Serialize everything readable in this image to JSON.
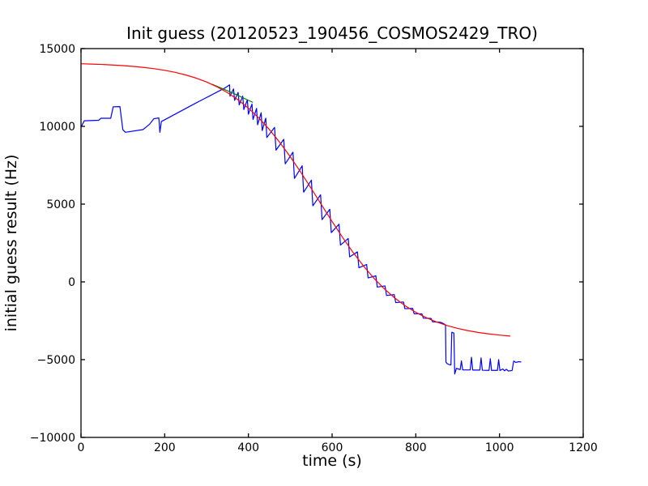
{
  "chart_data": {
    "type": "line",
    "title": "Init guess (20120523_190456_COSMOS2429_TRO)",
    "xlabel": "time (s)",
    "ylabel": "initial guess result (Hz)",
    "xlim": [
      0,
      1200
    ],
    "ylim": [
      -10000,
      15000
    ],
    "x_ticks": [
      0,
      200,
      400,
      600,
      800,
      1000,
      1200
    ],
    "x_tick_labels": [
      "0",
      "200",
      "400",
      "600",
      "800",
      "1000",
      "1200"
    ],
    "y_ticks": [
      -10000,
      -5000,
      0,
      5000,
      10000,
      15000
    ],
    "y_tick_labels": [
      "−10000",
      "−5000",
      "0",
      "5000",
      "10000",
      "15000"
    ],
    "grid": false,
    "legend": "none",
    "background_color": "#ffffff",
    "axis_color": "#000000",
    "series": [
      {
        "name": "blue-line",
        "color": "#0000ff",
        "points": [
          [
            0,
            9950
          ],
          [
            8,
            10360
          ],
          [
            42,
            10390
          ],
          [
            48,
            10520
          ],
          [
            71,
            10520
          ],
          [
            77,
            11260
          ],
          [
            93,
            11270
          ],
          [
            100,
            9790
          ],
          [
            106,
            9620
          ],
          [
            148,
            9790
          ],
          [
            164,
            10140
          ],
          [
            174,
            10490
          ],
          [
            186,
            10540
          ],
          [
            188.5,
            9620
          ],
          [
            192,
            10310
          ],
          [
            271,
            11450
          ],
          [
            344,
            12470
          ],
          [
            355,
            12670
          ],
          [
            356,
            11940
          ],
          [
            364.5,
            12410
          ],
          [
            367,
            11673
          ],
          [
            375.5,
            12182
          ],
          [
            378,
            11381
          ],
          [
            386.5,
            11944
          ],
          [
            389,
            11080
          ],
          [
            397.5,
            11706
          ],
          [
            400,
            10782
          ],
          [
            408.5,
            11436
          ],
          [
            411,
            10442
          ],
          [
            419.5,
            11156
          ],
          [
            422,
            10102
          ],
          [
            430.5,
            10876
          ],
          [
            433,
            9730
          ],
          [
            441.5,
            10530
          ],
          [
            444,
            9280
          ],
          [
            462.5,
            9934
          ],
          [
            466,
            8468
          ],
          [
            484.5,
            9166
          ],
          [
            488,
            7590
          ],
          [
            506.5,
            8340
          ],
          [
            510,
            6653
          ],
          [
            528.5,
            7464
          ],
          [
            532,
            5767
          ],
          [
            550.5,
            6541
          ],
          [
            554,
            4891
          ],
          [
            572.5,
            5600
          ],
          [
            576,
            4001
          ],
          [
            594.5,
            4666
          ],
          [
            598,
            3168
          ],
          [
            616.5,
            3709
          ],
          [
            620,
            2365
          ],
          [
            638.5,
            2791
          ],
          [
            642,
            1606
          ],
          [
            660.5,
            1930
          ],
          [
            664,
            907
          ],
          [
            682.5,
            1114
          ],
          [
            686,
            255
          ],
          [
            704.5,
            390
          ],
          [
            708,
            -336
          ],
          [
            726.5,
            -258
          ],
          [
            730,
            -871
          ],
          [
            748.5,
            -817
          ],
          [
            752,
            -1332
          ],
          [
            770.5,
            -1292
          ],
          [
            774,
            -1722
          ],
          [
            792.5,
            -1703
          ],
          [
            796,
            -2051
          ],
          [
            814.5,
            -2057
          ],
          [
            818,
            -2335
          ],
          [
            836.5,
            -2350
          ],
          [
            840,
            -2569
          ],
          [
            858.5,
            -2598
          ],
          [
            862,
            -2630
          ],
          [
            866,
            -2680
          ],
          [
            871,
            -2760
          ],
          [
            872,
            -5150
          ],
          [
            875,
            -5260
          ],
          [
            882,
            -5340
          ],
          [
            884,
            -5340
          ],
          [
            886,
            -3240
          ],
          [
            891,
            -3290
          ],
          [
            893,
            -5920
          ],
          [
            897,
            -5560
          ],
          [
            906,
            -5640
          ],
          [
            909,
            -5080
          ],
          [
            912,
            -5660
          ],
          [
            930,
            -5660
          ],
          [
            933,
            -4850
          ],
          [
            936,
            -5670
          ],
          [
            953,
            -5670
          ],
          [
            956,
            -4890
          ],
          [
            959,
            -5680
          ],
          [
            975,
            -5690
          ],
          [
            978,
            -4940
          ],
          [
            981,
            -5690
          ],
          [
            995,
            -5690
          ],
          [
            998,
            -5000
          ],
          [
            1001,
            -5700
          ],
          [
            1008,
            -5600
          ],
          [
            1012,
            -5720
          ],
          [
            1016,
            -5620
          ],
          [
            1021,
            -5730
          ],
          [
            1030,
            -5700
          ],
          [
            1034,
            -5090
          ],
          [
            1039,
            -5180
          ],
          [
            1046,
            -5130
          ],
          [
            1051,
            -5150
          ]
        ]
      },
      {
        "name": "green-line",
        "color": "#008000",
        "points": [
          [
            314,
            12700
          ],
          [
            362,
            12150
          ],
          [
            410,
            11550
          ]
        ]
      },
      {
        "name": "red-line",
        "color": "#ff0000",
        "points": [
          [
            0,
            14026
          ],
          [
            25,
            14005
          ],
          [
            50,
            13980
          ],
          [
            75,
            13947
          ],
          [
            100,
            13906
          ],
          [
            125,
            13855
          ],
          [
            150,
            13789
          ],
          [
            175,
            13706
          ],
          [
            200,
            13602
          ],
          [
            225,
            13472
          ],
          [
            250,
            13308
          ],
          [
            275,
            13105
          ],
          [
            300,
            12855
          ],
          [
            325,
            12544
          ],
          [
            350,
            12169
          ],
          [
            375,
            11712
          ],
          [
            400,
            11172
          ],
          [
            425,
            10536
          ],
          [
            450,
            9800
          ],
          [
            475,
            8969
          ],
          [
            500,
            8047
          ],
          [
            525,
            7061
          ],
          [
            550,
            6012
          ],
          [
            575,
            4943
          ],
          [
            600,
            3883
          ],
          [
            625,
            2860
          ],
          [
            650,
            1899
          ],
          [
            675,
            1021
          ],
          [
            700,
            233
          ],
          [
            725,
            -453
          ],
          [
            750,
            -1042
          ],
          [
            775,
            -1542
          ],
          [
            800,
            -1958
          ],
          [
            825,
            -2301
          ],
          [
            850,
            -2581
          ],
          [
            875,
            -2808
          ],
          [
            900,
            -2991
          ],
          [
            925,
            -3138
          ],
          [
            950,
            -3255
          ],
          [
            975,
            -3348
          ],
          [
            1000,
            -3422
          ],
          [
            1025,
            -3481
          ]
        ]
      }
    ]
  }
}
